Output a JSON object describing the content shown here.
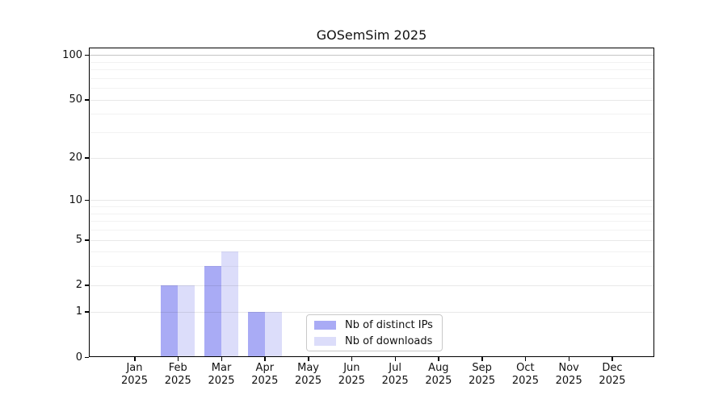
{
  "chart_data": {
    "type": "bar",
    "title": "GOSemSim 2025",
    "categories": [
      "Jan",
      "Feb",
      "Mar",
      "Apr",
      "May",
      "Jun",
      "Jul",
      "Aug",
      "Sep",
      "Oct",
      "Nov",
      "Dec"
    ],
    "category_year": "2025",
    "series": [
      {
        "name": "Nb of distinct IPs",
        "color": "#a9abf5",
        "values": [
          0,
          2,
          3,
          1,
          0,
          0,
          0,
          0,
          0,
          0,
          0,
          0
        ]
      },
      {
        "name": "Nb of downloads",
        "color": "#dcddfa",
        "values": [
          0,
          2,
          4,
          1,
          0,
          0,
          0,
          0,
          0,
          0,
          0,
          0
        ]
      }
    ],
    "y_axis": {
      "scale": "log1p",
      "major_ticks": [
        0,
        1,
        2,
        5,
        10,
        20,
        50,
        100
      ],
      "minor_gridlines": [
        3,
        4,
        6,
        7,
        8,
        9,
        30,
        40,
        60,
        70,
        80,
        90
      ],
      "ylim": [
        0,
        112
      ],
      "grid": true
    },
    "x_axis": {
      "label_lines": 2
    },
    "legend": {
      "position": "inside lower center",
      "entries": [
        "Nb of distinct IPs",
        "Nb of downloads"
      ]
    }
  },
  "colors": {
    "background": "#ffffff",
    "spine": "#000000",
    "grid_minor": "rgba(0,0,0,0.05)",
    "grid_major": "rgba(0,0,0,0.09)",
    "grid_top": "rgba(0,0,0,0.23)",
    "text": "#111111",
    "legend_border": "#c9c9c9"
  }
}
